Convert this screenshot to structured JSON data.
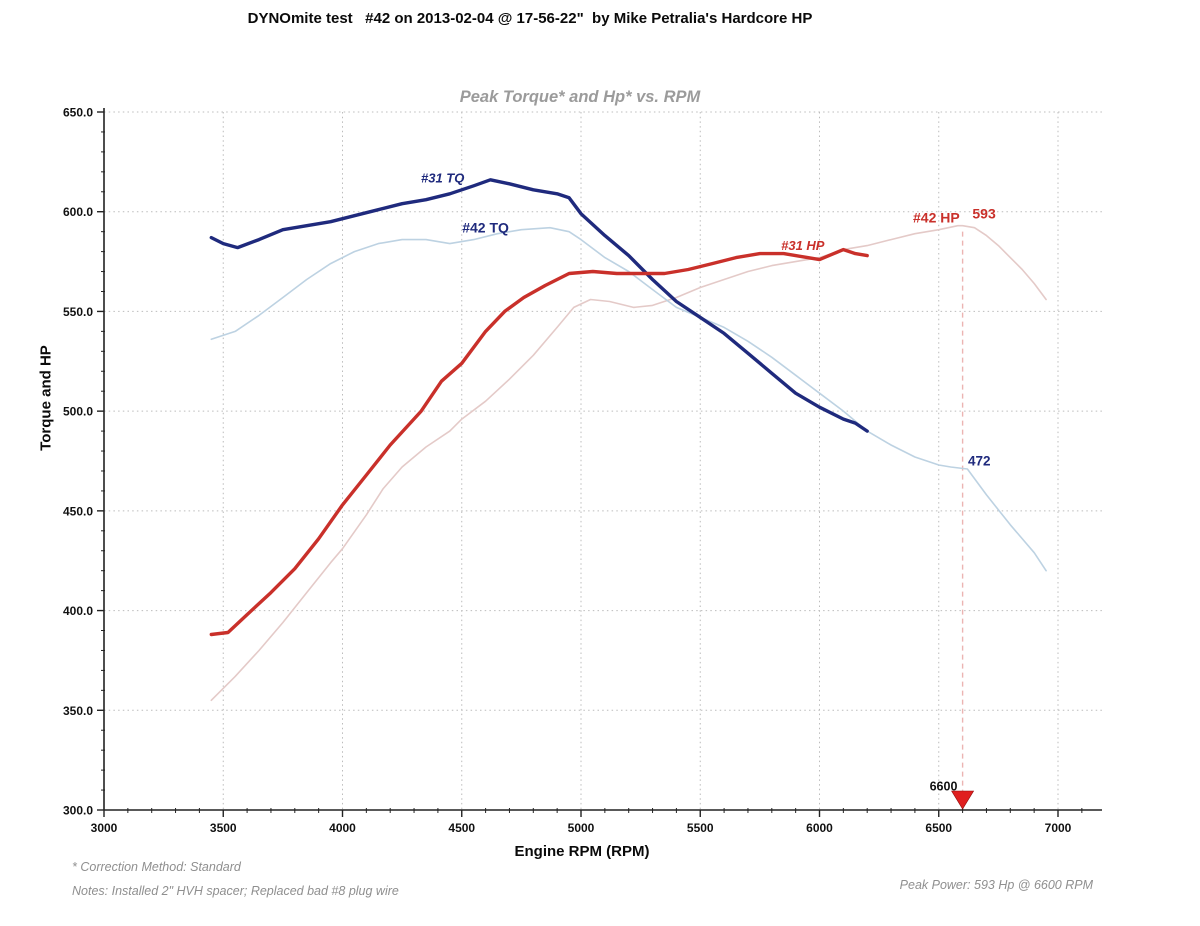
{
  "header": {
    "title": "DYNOmite test   #42 on 2013-02-04 @ 17-56-22\"  by Mike Petralia's Hardcore HP"
  },
  "chart": {
    "title": "Peak Torque* and Hp* vs. RPM",
    "y_axis_label": "Torque and HP",
    "x_axis_label": "Engine RPM (RPM)"
  },
  "footer": {
    "correction": "* Correction Method: Standard",
    "notes": "Notes: Installed 2\" HVH spacer; Replaced bad #8 plug wire",
    "peak_power": "Peak Power: 593 Hp @ 6600 RPM"
  },
  "colors": {
    "navy": "#1f2a7d",
    "light_blue": "#bdd2e2",
    "red": "#c9302a",
    "pink": "#e4cac8",
    "grid": "#bcbcbc",
    "axis": "#222222",
    "marker_red": "#e01f1f",
    "marker_dash_line": "#ecb4b2",
    "title_gray": "#9b9b9b"
  },
  "chart_data": {
    "type": "line",
    "title": "Peak Torque* and Hp* vs. RPM",
    "xlabel": "Engine RPM (RPM)",
    "ylabel": "Torque and HP",
    "xlim": [
      3000,
      7000
    ],
    "ylim": [
      300,
      650
    ],
    "grid": "dotted",
    "legend_position": "inline-curve-labels",
    "x_major_ticks": [
      3000,
      3500,
      4000,
      4500,
      5000,
      5500,
      6000,
      6500,
      7000
    ],
    "x_tick_labels": [
      "3000",
      "3500",
      "4000",
      "4500",
      "5000",
      "5500",
      "6000",
      "6500",
      "7000"
    ],
    "x_minor_step": 100,
    "y_major_ticks": [
      650,
      600,
      550,
      500,
      450,
      400,
      350,
      300
    ],
    "y_tick_labels": [
      "650.0",
      "600.0",
      "550.0",
      "500.0",
      "450.0",
      "400.0",
      "350.0",
      "300.0"
    ],
    "y_minor_step": 10,
    "series": [
      {
        "name": "#42 HP",
        "color": "#e4cac8",
        "width": 1.6,
        "points": [
          [
            3450,
            355
          ],
          [
            3550,
            367
          ],
          [
            3650,
            380
          ],
          [
            3750,
            394
          ],
          [
            3850,
            409
          ],
          [
            3950,
            424
          ],
          [
            4000,
            431
          ],
          [
            4100,
            448
          ],
          [
            4170,
            461
          ],
          [
            4250,
            472
          ],
          [
            4350,
            482
          ],
          [
            4450,
            490
          ],
          [
            4500,
            496
          ],
          [
            4600,
            505
          ],
          [
            4700,
            516
          ],
          [
            4800,
            528
          ],
          [
            4900,
            542
          ],
          [
            4970,
            552
          ],
          [
            5040,
            556
          ],
          [
            5120,
            555
          ],
          [
            5220,
            552
          ],
          [
            5300,
            553
          ],
          [
            5400,
            557
          ],
          [
            5500,
            562
          ],
          [
            5600,
            566
          ],
          [
            5700,
            570
          ],
          [
            5800,
            573
          ],
          [
            5900,
            575
          ],
          [
            6000,
            577
          ],
          [
            6100,
            581
          ],
          [
            6200,
            583
          ],
          [
            6300,
            586
          ],
          [
            6400,
            589
          ],
          [
            6500,
            591
          ],
          [
            6580,
            593
          ],
          [
            6600,
            593
          ],
          [
            6650,
            592
          ],
          [
            6700,
            588
          ],
          [
            6750,
            583
          ],
          [
            6800,
            577
          ],
          [
            6850,
            571
          ],
          [
            6900,
            564
          ],
          [
            6950,
            556
          ]
        ]
      },
      {
        "name": "#42 TQ",
        "color": "#bdd2e2",
        "width": 1.6,
        "points": [
          [
            3450,
            536
          ],
          [
            3550,
            540
          ],
          [
            3650,
            548
          ],
          [
            3750,
            557
          ],
          [
            3850,
            566
          ],
          [
            3950,
            574
          ],
          [
            4050,
            580
          ],
          [
            4150,
            584
          ],
          [
            4250,
            586
          ],
          [
            4350,
            586
          ],
          [
            4450,
            584
          ],
          [
            4550,
            586
          ],
          [
            4650,
            589
          ],
          [
            4750,
            591
          ],
          [
            4870,
            592
          ],
          [
            4950,
            590
          ],
          [
            5000,
            586
          ],
          [
            5100,
            577
          ],
          [
            5200,
            570
          ],
          [
            5300,
            561
          ],
          [
            5400,
            552
          ],
          [
            5500,
            547
          ],
          [
            5600,
            542
          ],
          [
            5700,
            535
          ],
          [
            5800,
            527
          ],
          [
            5900,
            518
          ],
          [
            6000,
            509
          ],
          [
            6100,
            500
          ],
          [
            6200,
            490
          ],
          [
            6300,
            483
          ],
          [
            6400,
            477
          ],
          [
            6500,
            473
          ],
          [
            6550,
            472
          ],
          [
            6620,
            471
          ],
          [
            6700,
            458
          ],
          [
            6800,
            443
          ],
          [
            6900,
            429
          ],
          [
            6950,
            420
          ]
        ]
      },
      {
        "name": "#31 TQ",
        "color": "#1f2a7d",
        "width": 3.4,
        "points": [
          [
            3450,
            587
          ],
          [
            3500,
            584
          ],
          [
            3560,
            582
          ],
          [
            3650,
            586
          ],
          [
            3750,
            591
          ],
          [
            3850,
            593
          ],
          [
            3950,
            595
          ],
          [
            4050,
            598
          ],
          [
            4150,
            601
          ],
          [
            4250,
            604
          ],
          [
            4350,
            606
          ],
          [
            4450,
            609
          ],
          [
            4550,
            613
          ],
          [
            4620,
            616
          ],
          [
            4700,
            614
          ],
          [
            4800,
            611
          ],
          [
            4900,
            609
          ],
          [
            4950,
            607
          ],
          [
            5000,
            599
          ],
          [
            5100,
            588
          ],
          [
            5200,
            578
          ],
          [
            5300,
            566
          ],
          [
            5400,
            555
          ],
          [
            5500,
            547
          ],
          [
            5600,
            539
          ],
          [
            5700,
            529
          ],
          [
            5800,
            519
          ],
          [
            5900,
            509
          ],
          [
            6000,
            502
          ],
          [
            6100,
            496
          ],
          [
            6150,
            494
          ],
          [
            6200,
            490
          ]
        ]
      },
      {
        "name": "#31 HP",
        "color": "#c9302a",
        "width": 3.4,
        "points": [
          [
            3450,
            388
          ],
          [
            3520,
            389
          ],
          [
            3600,
            398
          ],
          [
            3700,
            409
          ],
          [
            3800,
            421
          ],
          [
            3900,
            436
          ],
          [
            4000,
            453
          ],
          [
            4100,
            468
          ],
          [
            4200,
            483
          ],
          [
            4330,
            500
          ],
          [
            4415,
            515
          ],
          [
            4500,
            524
          ],
          [
            4600,
            540
          ],
          [
            4680,
            550
          ],
          [
            4760,
            557
          ],
          [
            4850,
            563
          ],
          [
            4950,
            569
          ],
          [
            5050,
            570
          ],
          [
            5150,
            569
          ],
          [
            5250,
            569
          ],
          [
            5350,
            569
          ],
          [
            5450,
            571
          ],
          [
            5550,
            574
          ],
          [
            5650,
            577
          ],
          [
            5750,
            579
          ],
          [
            5850,
            579
          ],
          [
            5950,
            577
          ],
          [
            6000,
            576
          ],
          [
            6060,
            579
          ],
          [
            6100,
            581
          ],
          [
            6150,
            579
          ],
          [
            6200,
            578
          ]
        ]
      }
    ],
    "annotations": [
      {
        "text": "#31 TQ",
        "rpm": 4420,
        "value": 617,
        "color": "#1f2a7d",
        "italic": true,
        "bold": true,
        "size": 13
      },
      {
        "text": "#42 TQ",
        "rpm": 4600,
        "value": 592,
        "color": "#1f2a7d",
        "italic": false,
        "bold": true,
        "size": 14
      },
      {
        "text": "#31 HP",
        "rpm": 5930,
        "value": 583,
        "color": "#c9302a",
        "italic": true,
        "bold": true,
        "size": 13
      },
      {
        "text": "#42 HP",
        "rpm": 6490,
        "value": 597,
        "color": "#c9302a",
        "italic": false,
        "bold": true,
        "size": 14
      },
      {
        "text": "593",
        "rpm": 6690,
        "value": 599,
        "color": "#c9302a",
        "italic": false,
        "bold": true,
        "size": 14
      },
      {
        "text": "472",
        "rpm": 6670,
        "value": 475,
        "color": "#1f2a7d",
        "italic": false,
        "bold": true,
        "size": 13.5
      },
      {
        "text": "6600",
        "rpm": 6520,
        "value": 312,
        "color": "#111111",
        "italic": false,
        "bold": true,
        "size": 12.5
      }
    ],
    "peak_marker": {
      "rpm": 6600,
      "label": "6600",
      "triangle_color": "#e01f1f",
      "dash_line_color": "#ecb4b2",
      "dash_line_top_value": 590
    }
  }
}
